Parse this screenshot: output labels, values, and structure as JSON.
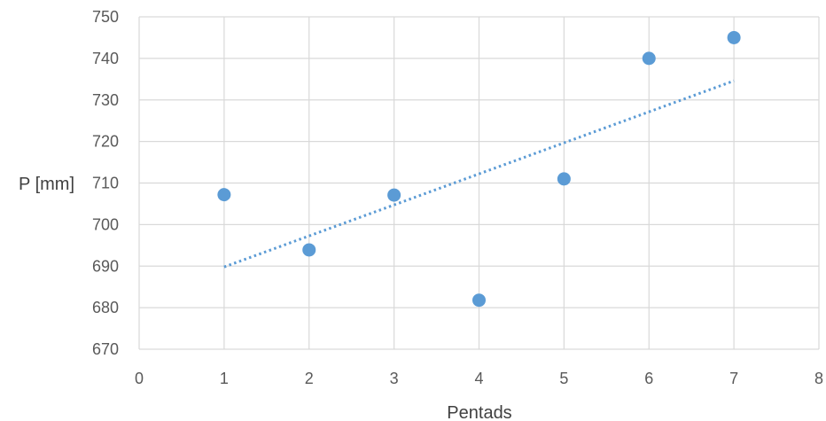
{
  "chart_data": {
    "type": "scatter",
    "title": "",
    "xlabel": "Pentads",
    "ylabel": "P [mm]",
    "xlim": [
      0,
      8
    ],
    "ylim": [
      670,
      750
    ],
    "xticks": [
      0,
      1,
      2,
      3,
      4,
      5,
      6,
      7,
      8
    ],
    "yticks": [
      670,
      680,
      690,
      700,
      710,
      720,
      730,
      740,
      750
    ],
    "grid": true,
    "legend": "none",
    "series": [
      {
        "x": [
          1,
          2,
          3,
          4,
          5,
          6,
          7
        ],
        "y": [
          707.2,
          693.9,
          707.1,
          681.8,
          711.0,
          740.0,
          745.0
        ],
        "color": "#5b9bd5",
        "marker": "circle"
      }
    ],
    "trendline": {
      "kind": "linear",
      "style": "dotted",
      "color": "#5b9bd5",
      "x": [
        1,
        7
      ],
      "y": [
        689.8,
        734.6
      ]
    }
  }
}
